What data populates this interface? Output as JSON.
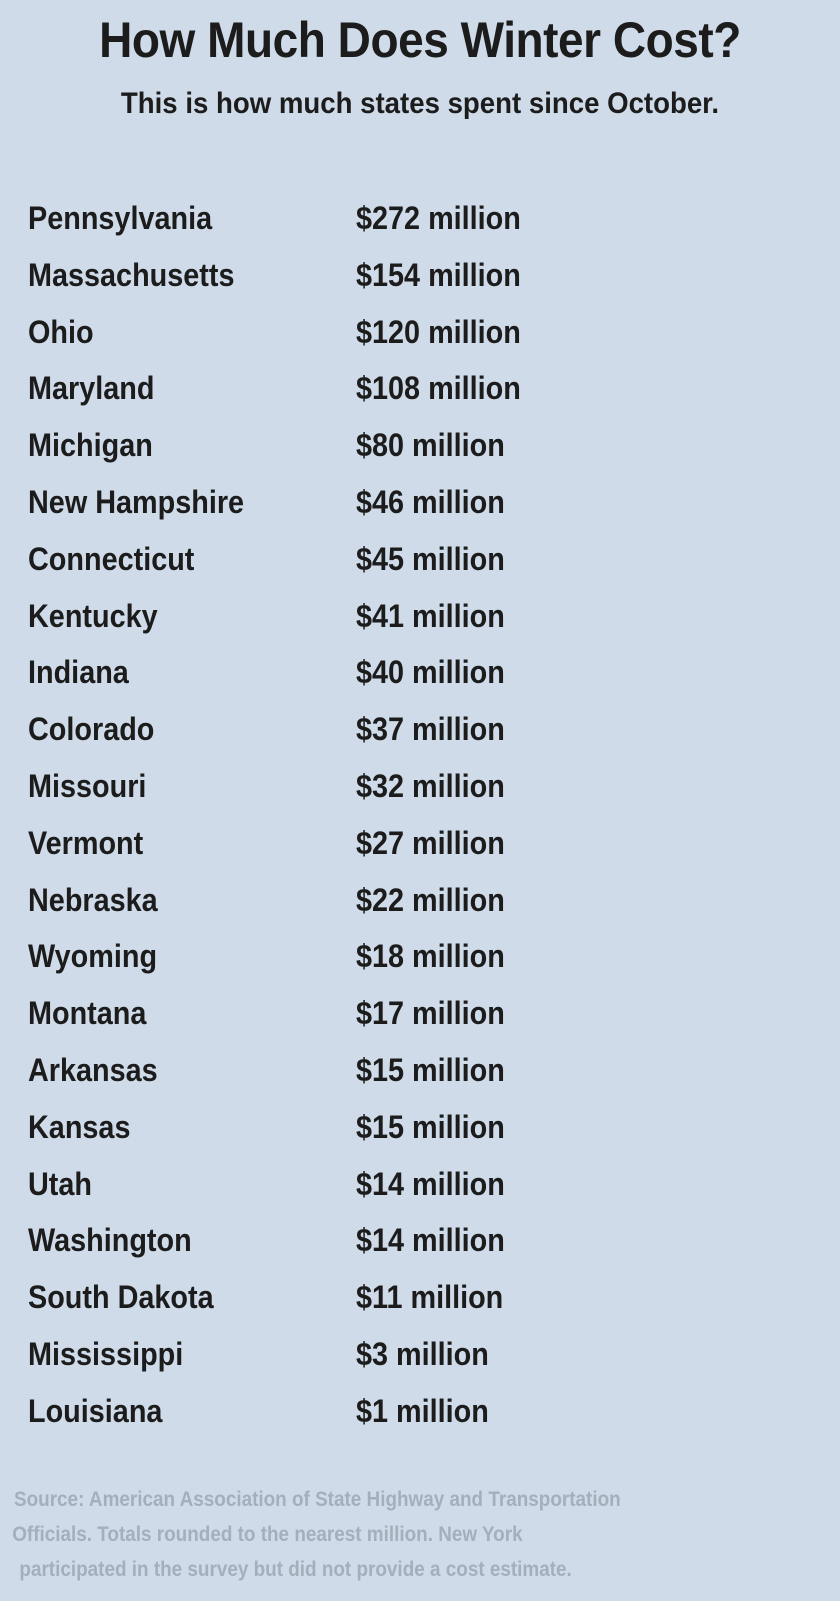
{
  "title": "How Much Does Winter Cost?",
  "subtitle": "This is how much states spent since October.",
  "chart_data": {
    "type": "table",
    "title": "How Much Does Winter Cost?",
    "subtitle": "This is how much states spent since October.",
    "unit": "million",
    "rows": [
      {
        "state": "Pennsylvania",
        "value": 272,
        "label": "$272 million"
      },
      {
        "state": "Massachusetts",
        "value": 154,
        "label": "$154 million"
      },
      {
        "state": "Ohio",
        "value": 120,
        "label": "$120 million"
      },
      {
        "state": "Maryland",
        "value": 108,
        "label": "$108 million"
      },
      {
        "state": "Michigan",
        "value": 80,
        "label": "$80 million"
      },
      {
        "state": "New Hampshire",
        "value": 46,
        "label": "$46 million"
      },
      {
        "state": "Connecticut",
        "value": 45,
        "label": "$45 million"
      },
      {
        "state": "Kentucky",
        "value": 41,
        "label": "$41 million"
      },
      {
        "state": "Indiana",
        "value": 40,
        "label": "$40 million"
      },
      {
        "state": "Colorado",
        "value": 37,
        "label": "$37 million"
      },
      {
        "state": "Missouri",
        "value": 32,
        "label": "$32 million"
      },
      {
        "state": "Vermont",
        "value": 27,
        "label": "$27 million"
      },
      {
        "state": "Nebraska",
        "value": 22,
        "label": "$22 million"
      },
      {
        "state": "Wyoming",
        "value": 18,
        "label": "$18 million"
      },
      {
        "state": "Montana",
        "value": 17,
        "label": "$17 million"
      },
      {
        "state": "Arkansas",
        "value": 15,
        "label": "$15 million"
      },
      {
        "state": "Kansas",
        "value": 15,
        "label": "$15 million"
      },
      {
        "state": "Utah",
        "value": 14,
        "label": "$14 million"
      },
      {
        "state": "Washington",
        "value": 14,
        "label": "$14 million"
      },
      {
        "state": "South Dakota",
        "value": 11,
        "label": "$11 million"
      },
      {
        "state": "Mississippi",
        "value": 3,
        "label": "$3 million"
      },
      {
        "state": "Louisiana",
        "value": 1,
        "label": "$1 million"
      }
    ]
  },
  "source_lines": [
    "Source: American Association of State Highway and Transportation",
    "Officials. Totals rounded to the nearest million. New York",
    "participated in the survey but did not provide a cost estimate."
  ],
  "colors": {
    "background": "#cfdbe9",
    "text": "#1c1c1c",
    "source_text": "#a5afbc"
  }
}
